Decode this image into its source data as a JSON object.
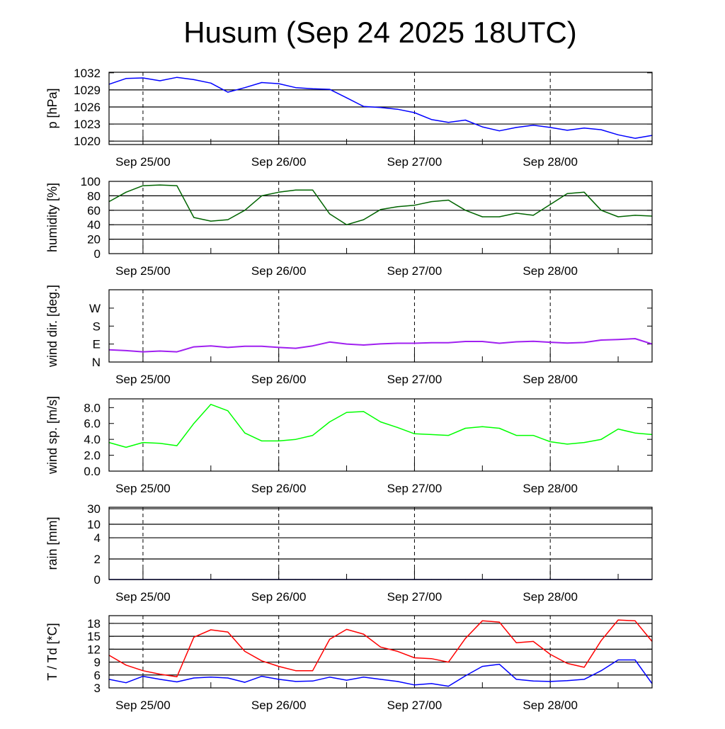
{
  "chart_data": {
    "type": "line",
    "title": "Husum (Sep 24 2025 18UTC)",
    "x_hours_from_start": [
      0,
      3,
      6,
      9,
      12,
      15,
      18,
      21,
      24,
      27,
      30,
      33,
      36,
      39,
      42,
      45,
      48,
      51,
      54,
      57,
      60,
      63,
      66,
      69,
      72,
      75,
      78,
      81,
      84,
      87,
      90,
      93,
      96
    ],
    "x_tick_labels": [
      "Sep 25/00",
      "Sep 26/00",
      "Sep 27/00",
      "Sep 28/00"
    ],
    "x_tick_hours": [
      6,
      30,
      54,
      78
    ],
    "xlim_hours": [
      0,
      96
    ],
    "panels": [
      {
        "id": "pressure",
        "ylabel": "p [hPa]",
        "ylim": [
          1019.4,
          1032.1
        ],
        "ytick_labels": [
          "1032",
          "1029",
          "1026",
          "1023",
          "1020"
        ],
        "ytick_values": [
          1032,
          1029,
          1026,
          1023,
          1020
        ],
        "grid": [
          1029,
          1026,
          1023,
          1020
        ],
        "series": [
          {
            "name": "p",
            "color": "#0000ff",
            "values": [
              1030.0,
              1031.0,
              1031.1,
              1030.6,
              1031.2,
              1030.8,
              1030.2,
              1028.6,
              1029.4,
              1030.3,
              1030.1,
              1029.4,
              1029.2,
              1029.1,
              1027.6,
              1026.1,
              1025.9,
              1025.6,
              1025.0,
              1023.8,
              1023.3,
              1023.7,
              1022.5,
              1021.8,
              1022.4,
              1022.8,
              1022.4,
              1021.9,
              1022.3,
              1022.0,
              1021.1,
              1020.5,
              1021.0
            ]
          }
        ]
      },
      {
        "id": "humidity",
        "ylabel": "humidity [%]",
        "ylim": [
          0,
          100
        ],
        "ytick_labels": [
          "100",
          "80",
          "60",
          "40",
          "20",
          "0"
        ],
        "ytick_values": [
          100,
          80,
          60,
          40,
          20,
          0
        ],
        "grid": [
          80,
          60,
          40,
          20
        ],
        "series": [
          {
            "name": "humidity",
            "color": "#006400",
            "values": [
              72,
              85,
              94,
              95,
              94,
              50,
              45,
              47,
              60,
              80,
              85,
              88,
              88,
              55,
              40,
              47,
              61,
              65,
              67,
              72,
              74,
              60,
              51,
              51,
              56,
              53,
              68,
              83,
              85,
              60,
              51,
              53,
              52
            ]
          }
        ]
      },
      {
        "id": "wind-direction",
        "ylabel": "wind dir. [deg.]",
        "ylim": [
          0,
          362
        ],
        "ytick_labels": [
          "W",
          "S",
          "E",
          "N"
        ],
        "ytick_values": [
          270,
          180,
          90,
          0
        ],
        "grid": [],
        "series": [
          {
            "name": "wind direction",
            "color": "#a020f0",
            "values": [
              61,
              57,
              51,
              55,
              51,
              76,
              81,
              73,
              79,
              79,
              73,
              69,
              81,
              100,
              90,
              85,
              91,
              94,
              94,
              97,
              97,
              103,
              103,
              94,
              101,
              104,
              99,
              95,
              98,
              110,
              113,
              117,
              90
            ]
          }
        ]
      },
      {
        "id": "wind-speed",
        "ylabel": "wind sp. [m/s]",
        "ylim": [
          0,
          9.1
        ],
        "ytick_labels": [
          "8.0",
          "6.0",
          "4.0",
          "2.0",
          "0.0"
        ],
        "ytick_values": [
          8,
          6,
          4,
          2,
          0
        ],
        "grid": [],
        "series": [
          {
            "name": "wind speed",
            "color": "#00ff00",
            "values": [
              3.6,
              3.0,
              3.6,
              3.5,
              3.2,
              6.0,
              8.4,
              7.6,
              4.8,
              3.8,
              3.8,
              4.0,
              4.5,
              6.2,
              7.4,
              7.5,
              6.2,
              5.5,
              4.7,
              4.6,
              4.5,
              5.4,
              5.6,
              5.4,
              4.5,
              4.5,
              3.7,
              3.4,
              3.6,
              4.0,
              5.3,
              4.8,
              4.6
            ]
          }
        ]
      },
      {
        "id": "rain",
        "ylabel": "rain [mm]",
        "scale": "piecewise",
        "ytick_labels": [
          "30",
          "10",
          "4",
          "2",
          "0"
        ],
        "ytick_values": [
          30,
          10,
          4,
          2,
          0
        ],
        "grid": [
          30,
          10,
          4,
          2
        ],
        "series": [
          {
            "name": "rain",
            "color": "#00008b",
            "values": [
              0,
              0,
              0,
              0,
              0,
              0,
              0,
              0,
              0,
              0,
              0,
              0,
              0,
              0,
              0,
              0,
              0,
              0,
              0,
              0,
              0,
              0,
              0,
              0,
              0,
              0,
              0,
              0,
              0,
              0,
              0,
              0,
              0
            ]
          }
        ]
      },
      {
        "id": "temperature",
        "ylabel": "T / Td [*C]",
        "ylim": [
          3,
          19.8
        ],
        "ytick_labels": [
          "18",
          "15",
          "12",
          "9",
          "6",
          "3"
        ],
        "ytick_values": [
          18,
          15,
          12,
          9,
          6,
          3
        ],
        "grid": [
          18,
          15,
          12,
          9,
          6
        ],
        "series": [
          {
            "name": "T",
            "color": "#ff0000",
            "values": [
              10.6,
              8.3,
              7.0,
              6.2,
              5.6,
              14.8,
              16.5,
              16.0,
              11.5,
              9.3,
              8.0,
              7.0,
              7.0,
              14.3,
              16.6,
              15.5,
              12.5,
              11.5,
              10.0,
              9.8,
              9.0,
              14.5,
              18.6,
              18.3,
              13.5,
              13.8,
              10.8,
              8.7,
              7.8,
              14.0,
              18.8,
              18.6,
              13.8
            ]
          },
          {
            "name": "Td",
            "color": "#0000ff",
            "values": [
              5.0,
              4.2,
              5.7,
              5.0,
              4.4,
              5.3,
              5.5,
              5.3,
              4.3,
              5.7,
              5.0,
              4.5,
              4.6,
              5.5,
              4.8,
              5.5,
              5.0,
              4.5,
              3.7,
              4.0,
              3.4,
              5.8,
              8.0,
              8.5,
              5.0,
              4.6,
              4.5,
              4.7,
              5.0,
              7.0,
              9.5,
              9.5,
              4.0
            ]
          }
        ]
      }
    ]
  }
}
